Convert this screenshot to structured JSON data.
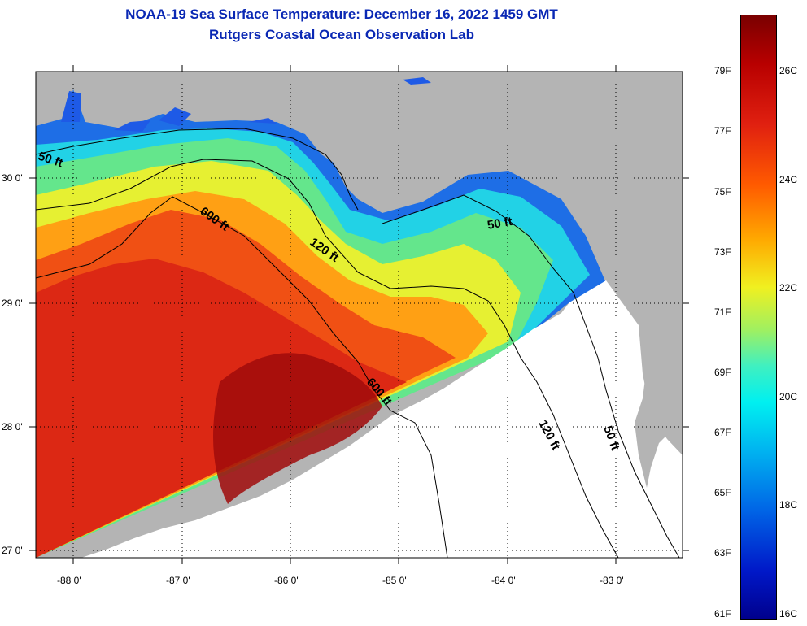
{
  "header": {
    "title": "NOAA-19 Sea Surface Temperature:  December 16, 2022 1459 GMT",
    "subtitle": "Rutgers Coastal Ocean Observation Lab"
  },
  "axes": {
    "lat_labels": [
      "30 0'",
      "29 0'",
      "28 0'",
      "27 0'"
    ],
    "lon_labels": [
      "-88 0'",
      "-87 0'",
      "-86 0'",
      "-85 0'",
      "-84 0'",
      "-83 0'"
    ]
  },
  "contours": {
    "labels": [
      "50 ft",
      "600 ft",
      "120 ft",
      "50 ft",
      "600 ft",
      "120 ft",
      "50 ft"
    ]
  },
  "colorbar": {
    "fahrenheit": [
      "79F",
      "77F",
      "75F",
      "73F",
      "71F",
      "69F",
      "67F",
      "65F",
      "63F",
      "61F"
    ],
    "celsius": [
      "26C",
      "24C",
      "22C",
      "20C",
      "18C",
      "16C"
    ]
  },
  "colors": {
    "title": "#0a28b4",
    "land": "#b4b4b4",
    "no_data": "#ffffff"
  }
}
